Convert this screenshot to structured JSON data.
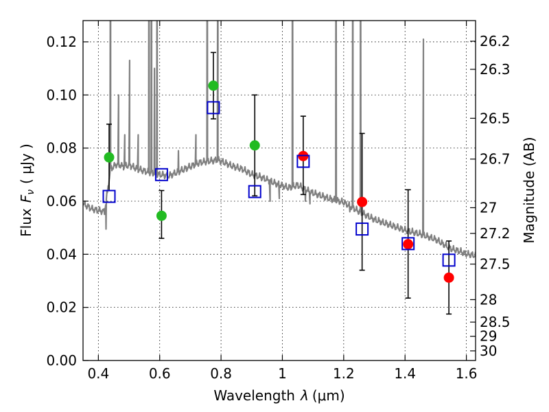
{
  "chart_data": {
    "type": "scatter",
    "xlabel_text": "Wavelength",
    "xlabel_symbol": "λ",
    "xlabel_unit": "(μm)",
    "ylabel_text": "Flux",
    "ylabel_symbol": "F",
    "ylabel_sub": "ν",
    "ylabel_unit": "( μJy )",
    "y2label": "Magnitude (AB)",
    "xlim": [
      0.35,
      1.63
    ],
    "ylim": [
      0.0,
      0.128
    ],
    "grid": true,
    "x_ticks": [
      {
        "value": 0.4,
        "label": "0.4"
      },
      {
        "value": 0.6,
        "label": "0.6"
      },
      {
        "value": 0.8,
        "label": "0.8"
      },
      {
        "value": 1.0,
        "label": "1"
      },
      {
        "value": 1.2,
        "label": "1.2"
      },
      {
        "value": 1.4,
        "label": "1.4"
      },
      {
        "value": 1.6,
        "label": "1.6"
      }
    ],
    "y_ticks": [
      {
        "value": 0.0,
        "label": "0.00"
      },
      {
        "value": 0.02,
        "label": "0.02"
      },
      {
        "value": 0.04,
        "label": "0.04"
      },
      {
        "value": 0.06,
        "label": "0.06"
      },
      {
        "value": 0.08,
        "label": "0.08"
      },
      {
        "value": 0.1,
        "label": "0.10"
      },
      {
        "value": 0.12,
        "label": "0.12"
      }
    ],
    "mag_ticks": [
      {
        "mag": 26.2,
        "label": "26.2"
      },
      {
        "mag": 26.3,
        "label": "26.3"
      },
      {
        "mag": 26.5,
        "label": "26.5"
      },
      {
        "mag": 26.7,
        "label": "26.7"
      },
      {
        "mag": 27.0,
        "label": "27"
      },
      {
        "mag": 27.2,
        "label": "27.2"
      },
      {
        "mag": 27.5,
        "label": "27.5"
      },
      {
        "mag": 28.0,
        "label": "28"
      },
      {
        "mag": 28.5,
        "label": "28.5"
      },
      {
        "mag": 29.0,
        "label": "29"
      },
      {
        "mag": 30.0,
        "label": "30"
      }
    ],
    "series": [
      {
        "kind": "observed-green",
        "color": "#22bb22",
        "points": [
          {
            "x": 0.435,
            "y": 0.0765,
            "ylo": 0.064,
            "yhi": 0.089
          },
          {
            "x": 0.606,
            "y": 0.0545,
            "ylo": 0.046,
            "yhi": 0.064
          },
          {
            "x": 0.775,
            "y": 0.1035,
            "ylo": 0.091,
            "yhi": 0.116
          },
          {
            "x": 0.91,
            "y": 0.081,
            "ylo": 0.062,
            "yhi": 0.1
          }
        ]
      },
      {
        "kind": "observed-red",
        "color": "#ff0000",
        "points": [
          {
            "x": 1.068,
            "y": 0.077,
            "ylo": 0.0625,
            "yhi": 0.092
          },
          {
            "x": 1.26,
            "y": 0.0597,
            "ylo": 0.034,
            "yhi": 0.0855
          },
          {
            "x": 1.41,
            "y": 0.0438,
            "ylo": 0.0235,
            "yhi": 0.0643
          },
          {
            "x": 1.543,
            "y": 0.0312,
            "ylo": 0.0175,
            "yhi": 0.045
          }
        ]
      },
      {
        "kind": "model-squares",
        "color": "#0000cc",
        "points": [
          {
            "x": 0.435,
            "y": 0.0618
          },
          {
            "x": 0.606,
            "y": 0.07
          },
          {
            "x": 0.775,
            "y": 0.0952
          },
          {
            "x": 0.91,
            "y": 0.0636
          },
          {
            "x": 1.068,
            "y": 0.075
          },
          {
            "x": 1.26,
            "y": 0.0495
          },
          {
            "x": 1.41,
            "y": 0.044
          },
          {
            "x": 1.543,
            "y": 0.0378
          }
        ]
      }
    ],
    "model_spectrum": {
      "color": "#808080",
      "continuum": [
        [
          0.35,
          0.059
        ],
        [
          0.38,
          0.057
        ],
        [
          0.4,
          0.0565
        ],
        [
          0.42,
          0.056
        ],
        [
          0.44,
          0.072
        ],
        [
          0.46,
          0.074
        ],
        [
          0.48,
          0.073
        ],
        [
          0.5,
          0.0735
        ],
        [
          0.53,
          0.072
        ],
        [
          0.56,
          0.071
        ],
        [
          0.6,
          0.07
        ],
        [
          0.63,
          0.0695
        ],
        [
          0.66,
          0.071
        ],
        [
          0.7,
          0.073
        ],
        [
          0.73,
          0.0745
        ],
        [
          0.76,
          0.075
        ],
        [
          0.79,
          0.0755
        ],
        [
          0.81,
          0.0745
        ],
        [
          0.84,
          0.073
        ],
        [
          0.87,
          0.072
        ],
        [
          0.9,
          0.07
        ],
        [
          0.93,
          0.069
        ],
        [
          0.95,
          0.068
        ],
        [
          0.98,
          0.0665
        ],
        [
          1.02,
          0.065
        ],
        [
          1.05,
          0.066
        ],
        [
          1.08,
          0.064
        ],
        [
          1.1,
          0.063
        ],
        [
          1.15,
          0.061
        ],
        [
          1.2,
          0.0595
        ],
        [
          1.25,
          0.056
        ],
        [
          1.3,
          0.053
        ],
        [
          1.35,
          0.051
        ],
        [
          1.4,
          0.049
        ],
        [
          1.45,
          0.0475
        ],
        [
          1.5,
          0.0455
        ],
        [
          1.55,
          0.042
        ],
        [
          1.58,
          0.041
        ],
        [
          1.6,
          0.04
        ],
        [
          1.63,
          0.0395
        ]
      ],
      "lines": [
        {
          "x": 0.44,
          "peak": 0.2
        },
        {
          "x": 0.466,
          "peak": 0.1
        },
        {
          "x": 0.486,
          "peak": 0.085
        },
        {
          "x": 0.502,
          "peak": 0.113
        },
        {
          "x": 0.53,
          "peak": 0.085
        },
        {
          "x": 0.565,
          "peak": 0.2
        },
        {
          "x": 0.573,
          "peak": 0.2
        },
        {
          "x": 0.583,
          "peak": 0.11
        },
        {
          "x": 0.592,
          "peak": 0.2
        },
        {
          "x": 0.661,
          "peak": 0.079
        },
        {
          "x": 0.718,
          "peak": 0.085
        },
        {
          "x": 0.755,
          "peak": 0.2
        },
        {
          "x": 0.79,
          "peak": 0.2
        },
        {
          "x": 1.033,
          "peak": 0.2
        },
        {
          "x": 1.175,
          "peak": 0.2
        },
        {
          "x": 1.23,
          "peak": 0.2
        },
        {
          "x": 1.255,
          "peak": 0.2
        },
        {
          "x": 1.46,
          "peak": 0.121
        }
      ],
      "dips": [
        {
          "x": 0.425,
          "depth": 0.0495
        },
        {
          "x": 0.96,
          "depth": 0.06
        },
        {
          "x": 0.99,
          "depth": 0.061
        },
        {
          "x": 1.075,
          "depth": 0.06
        },
        {
          "x": 1.09,
          "depth": 0.059
        },
        {
          "x": 1.22,
          "depth": 0.056
        }
      ]
    }
  }
}
